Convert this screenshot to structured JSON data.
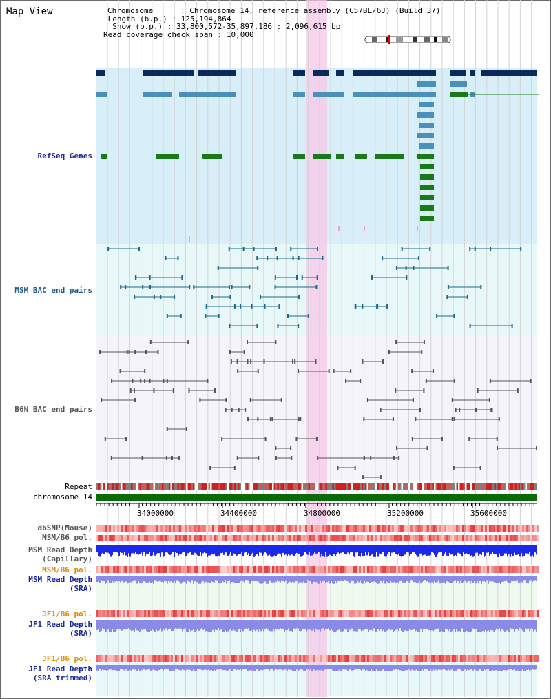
{
  "title": "Map View",
  "header": {
    "chromosome_label": "Chromosome",
    "chromosome_value": "Chromosome 14, reference assembly (C57BL/6J) (Build 37)",
    "length_label": "Length (b.p.)",
    "length_value": "125,194,864",
    "show_label": "Show (b.p.)",
    "show_value": "33,800,572-35,897,186 : 2,096,615 bp",
    "coverage_label": "Read coverage check span",
    "coverage_value": "10,000"
  },
  "tracks": {
    "refseq": "RefSeq Genes",
    "msm_bac": "MSM BAC end pairs",
    "b6n_bac": "B6N BAC end pairs",
    "repeat": "Repeat",
    "chromosome": "chromosome 14",
    "dbsnp": "dbSNP(Mouse)",
    "msm_b6_pol_1": "MSM/B6 pol.",
    "msm_depth_cap_1": "MSM Read Depth",
    "msm_depth_cap_2": "(Capillary)",
    "msm_b6_pol_2": "MSM/B6 pol.",
    "msm_depth_sra_1": "MSM Read Depth",
    "msm_depth_sra_2": "(SRA)",
    "jf1_b6_pol_1": "JF1/B6 pol.",
    "jf1_depth_sra_1": "JF1 Read Depth",
    "jf1_depth_sra_2": "(SRA)",
    "jf1_b6_pol_2": "JF1/B6 pol.",
    "jf1_depth_trim_1": "JF1 Read Depth",
    "jf1_depth_trim_2": "(SRA trimmed)"
  },
  "axis_ticks": [
    "34000000",
    "34400000",
    "34800000",
    "35200000",
    "35600000"
  ],
  "colors": {
    "refseq_bg": "#d8eef8",
    "navy_gene": "#0a2a5a",
    "blue_gene": "#4a90b8",
    "green_gene": "#1a7a1a",
    "highlight": "#f8c8e8",
    "chromosome_bar": "#0a6a0a",
    "depth_blue": "#1a2ae8",
    "depth_light": "#8a8ae8"
  }
}
